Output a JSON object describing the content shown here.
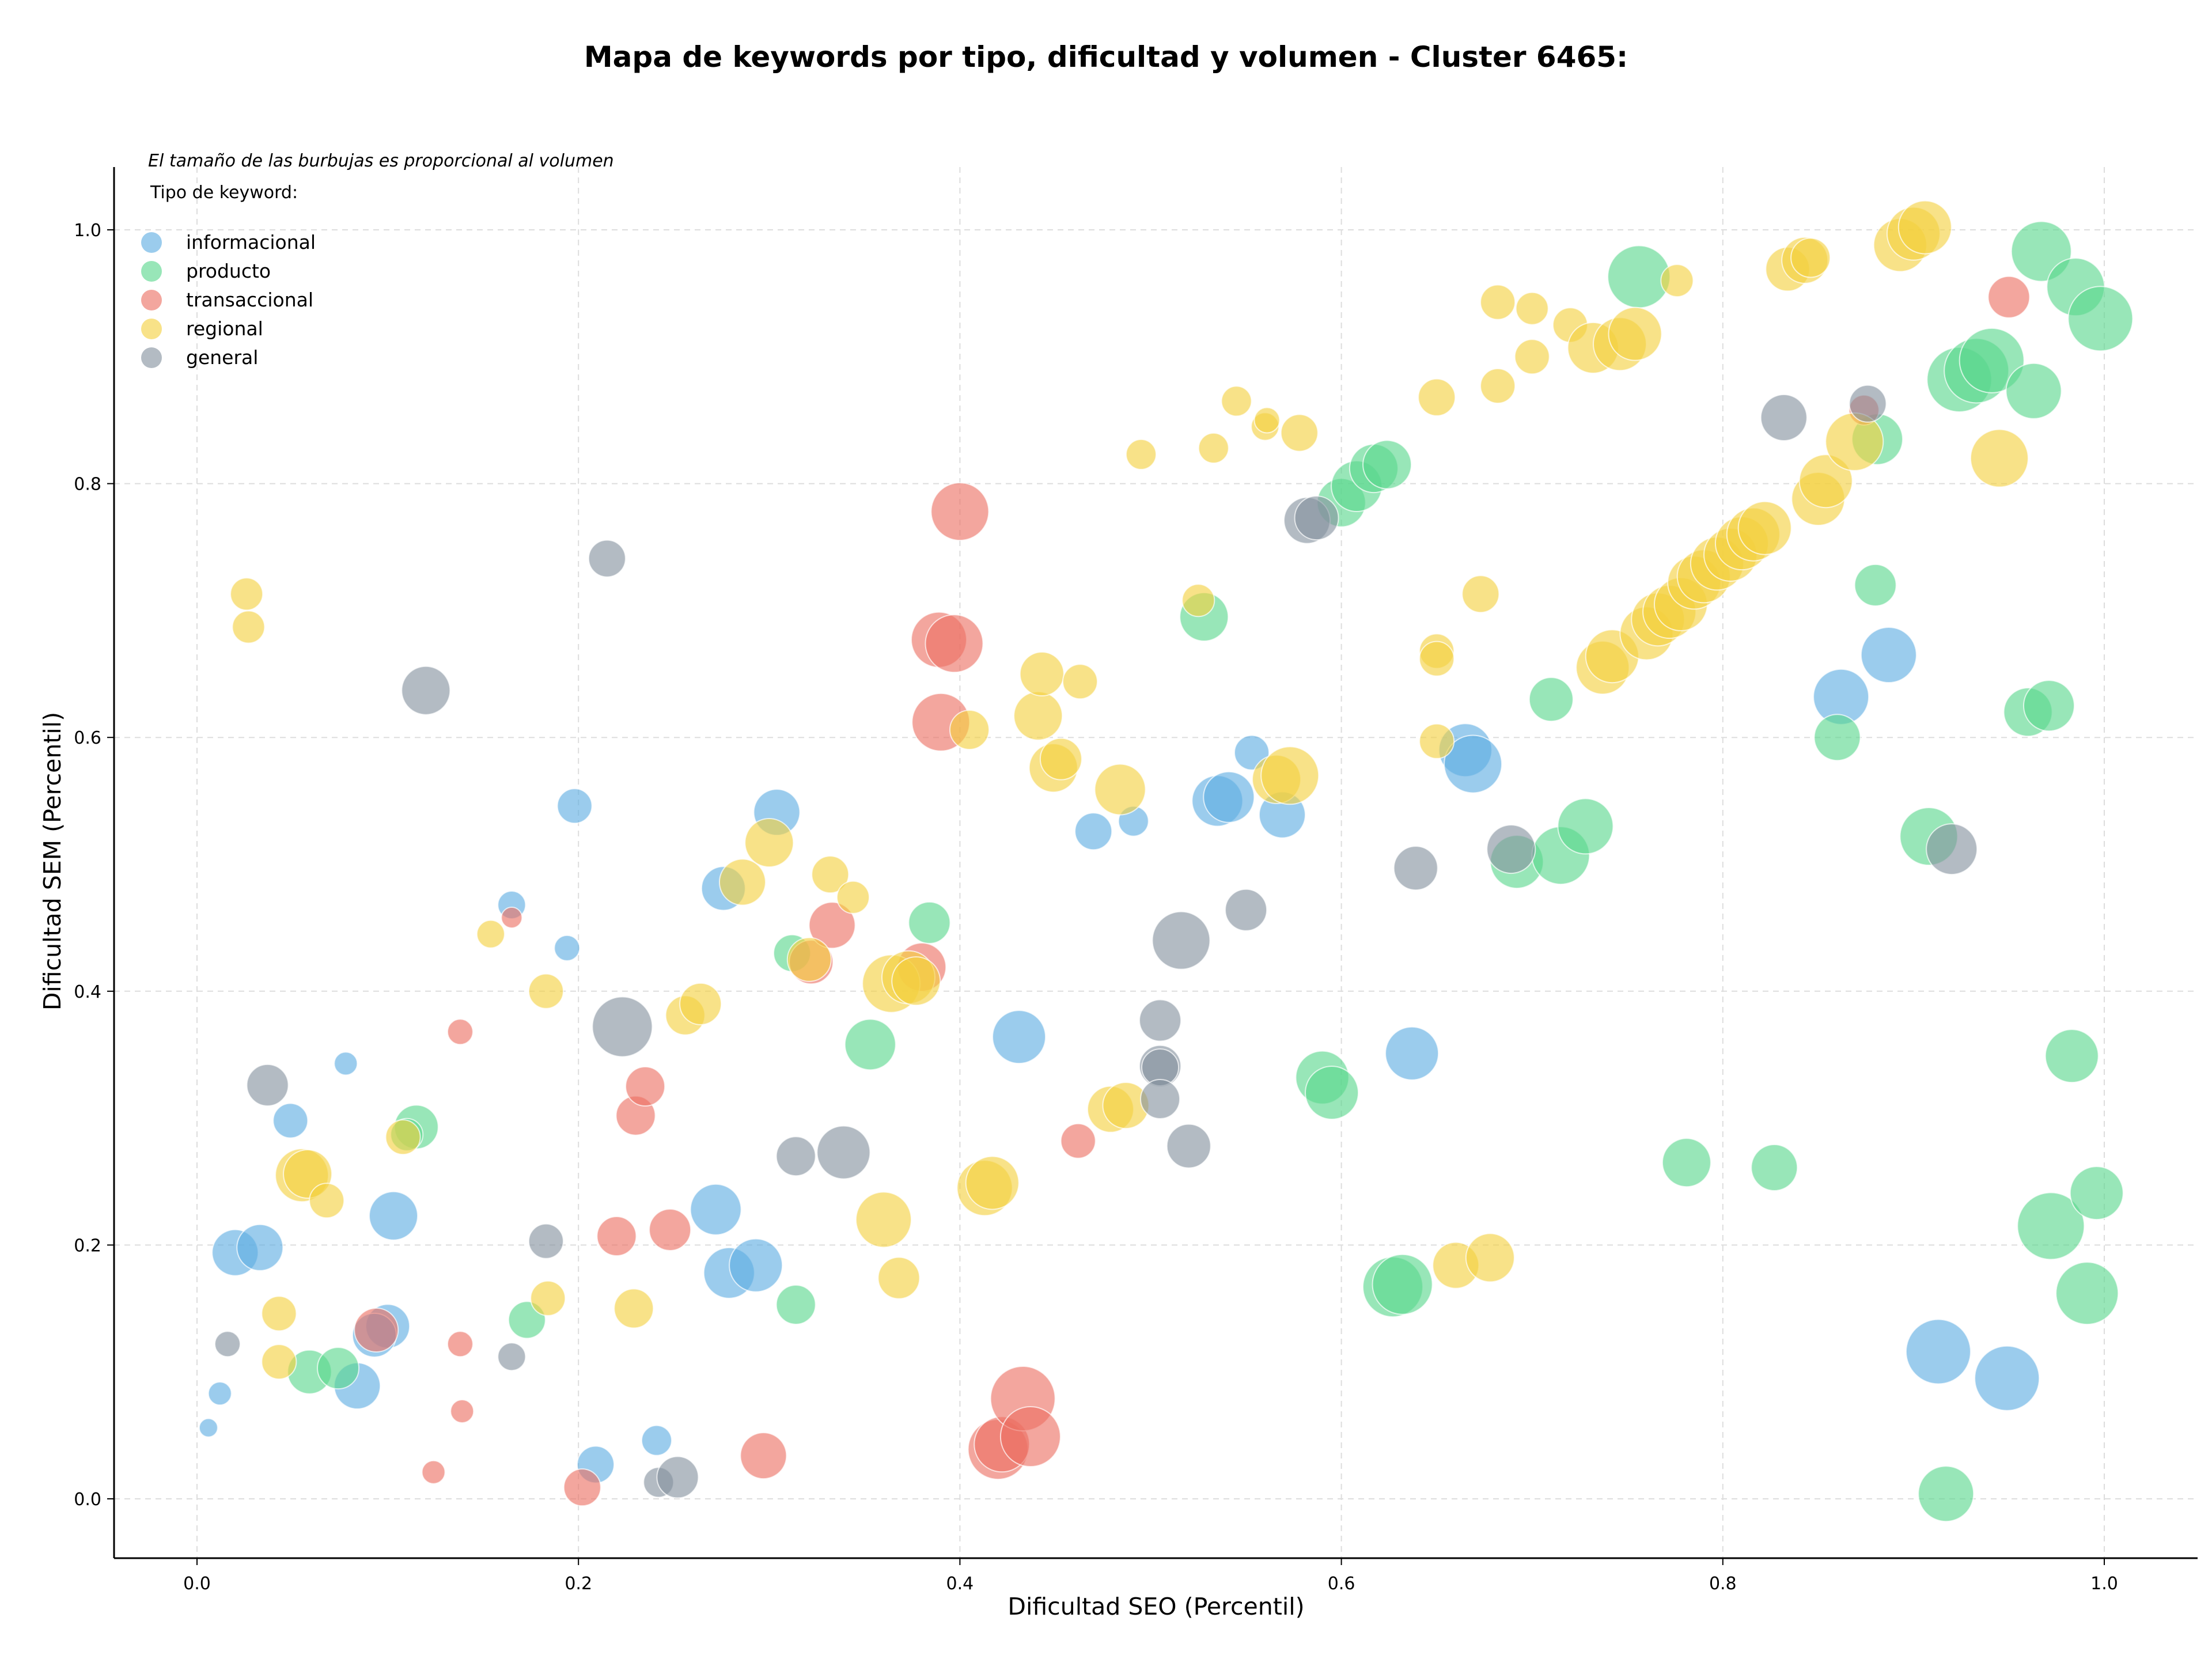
{
  "chart_data": {
    "type": "scatter",
    "title": "Mapa de keywords por tipo, dificultad y volumen - Cluster 6465:",
    "xlabel": "Dificultad SEO (Percentil)",
    "ylabel": "Dificultad SEM (Percentil)",
    "xlim": [
      -0.045,
      1.048
    ],
    "ylim": [
      -0.045,
      1.05
    ],
    "xticks": [
      "0.0",
      "0.2",
      "0.4",
      "0.6",
      "0.8",
      "1.0"
    ],
    "yticks": [
      "0.0",
      "0.2",
      "0.4",
      "0.6",
      "0.8",
      "1.0"
    ],
    "grid": true,
    "legend": {
      "placement": "top-left",
      "note": "El tamaño de las burbujas es proporcional al volumen",
      "title": "Tipo de keyword:"
    },
    "series": [
      {
        "name": "informacional",
        "color": "#5DADE2",
        "points": [
          [
            0.006,
            0.056,
            0.8
          ],
          [
            0.012,
            0.083,
            1.0
          ],
          [
            0.02,
            0.194,
            2.0
          ],
          [
            0.033,
            0.198,
            2.0
          ],
          [
            0.049,
            0.298,
            1.5
          ],
          [
            0.078,
            0.343,
            1.0
          ],
          [
            0.084,
            0.089,
            2.0
          ],
          [
            0.1,
            0.136,
            1.9
          ],
          [
            0.093,
            0.129,
            1.9
          ],
          [
            0.103,
            0.223,
            2.1
          ],
          [
            0.165,
            0.468,
            1.2
          ],
          [
            0.194,
            0.434,
            1.1
          ],
          [
            0.198,
            0.546,
            1.5
          ],
          [
            0.209,
            0.027,
            1.6
          ],
          [
            0.241,
            0.046,
            1.3
          ],
          [
            0.272,
            0.228,
            2.2
          ],
          [
            0.276,
            0.481,
            1.9
          ],
          [
            0.279,
            0.178,
            2.2
          ],
          [
            0.293,
            0.184,
            2.3
          ],
          [
            0.304,
            0.541,
            2.0
          ],
          [
            0.431,
            0.364,
            2.3
          ],
          [
            0.47,
            0.526,
            1.6
          ],
          [
            0.491,
            0.534,
            1.3
          ],
          [
            0.535,
            0.55,
            2.2
          ],
          [
            0.541,
            0.553,
            2.2
          ],
          [
            0.553,
            0.588,
            1.5
          ],
          [
            0.569,
            0.539,
            2.0
          ],
          [
            0.637,
            0.351,
            2.3
          ],
          [
            0.665,
            0.59,
            2.3
          ],
          [
            0.669,
            0.579,
            2.5
          ],
          [
            0.862,
            0.632,
            2.4
          ],
          [
            0.887,
            0.665,
            2.4
          ],
          [
            0.913,
            0.116,
            2.8
          ],
          [
            0.949,
            0.095,
            2.8
          ]
        ]
      },
      {
        "name": "producto",
        "color": "#58D68D",
        "points": [
          [
            0.059,
            0.1,
            1.9
          ],
          [
            0.074,
            0.103,
            1.8
          ],
          [
            0.115,
            0.293,
            1.9
          ],
          [
            0.11,
            0.287,
            1.4
          ],
          [
            0.173,
            0.141,
            1.6
          ],
          [
            0.314,
            0.153,
            1.7
          ],
          [
            0.312,
            0.43,
            1.6
          ],
          [
            0.353,
            0.358,
            2.2
          ],
          [
            0.384,
            0.454,
            1.8
          ],
          [
            0.528,
            0.695,
            2.1
          ],
          [
            0.6,
            0.785,
            2.1
          ],
          [
            0.608,
            0.798,
            2.2
          ],
          [
            0.617,
            0.812,
            2.1
          ],
          [
            0.624,
            0.815,
            2.1
          ],
          [
            0.59,
            0.332,
            2.3
          ],
          [
            0.595,
            0.32,
            2.3
          ],
          [
            0.627,
            0.167,
            2.6
          ],
          [
            0.632,
            0.169,
            2.6
          ],
          [
            0.692,
            0.502,
            2.3
          ],
          [
            0.71,
            0.63,
            1.9
          ],
          [
            0.715,
            0.507,
            2.5
          ],
          [
            0.728,
            0.53,
            2.4
          ],
          [
            0.756,
            0.963,
            2.7
          ],
          [
            0.781,
            0.265,
            2.1
          ],
          [
            0.827,
            0.261,
            2.0
          ],
          [
            0.86,
            0.6,
            2.0
          ],
          [
            0.88,
            0.72,
            1.8
          ],
          [
            0.881,
            0.835,
            2.2
          ],
          [
            0.908,
            0.522,
            2.5
          ],
          [
            0.924,
            0.882,
            2.8
          ],
          [
            0.933,
            0.889,
            2.8
          ],
          [
            0.941,
            0.897,
            2.8
          ],
          [
            0.917,
            0.004,
            2.4
          ],
          [
            0.96,
            0.62,
            2.1
          ],
          [
            0.971,
            0.625,
            2.2
          ],
          [
            0.963,
            0.873,
            2.4
          ],
          [
            0.967,
            0.983,
            2.6
          ],
          [
            0.972,
            0.215,
            2.9
          ],
          [
            0.985,
            0.955,
            2.5
          ],
          [
            0.983,
            0.349,
            2.3
          ],
          [
            0.991,
            0.162,
            2.7
          ],
          [
            0.996,
            0.241,
            2.3
          ],
          [
            0.998,
            0.93,
            2.8
          ]
        ]
      },
      {
        "name": "transaccional",
        "color": "#EC7063",
        "points": [
          [
            0.124,
            0.021,
            1.0
          ],
          [
            0.094,
            0.133,
            1.9
          ],
          [
            0.138,
            0.122,
            1.1
          ],
          [
            0.138,
            0.368,
            1.1
          ],
          [
            0.139,
            0.069,
            1.0
          ],
          [
            0.165,
            0.458,
            0.9
          ],
          [
            0.202,
            0.009,
            1.6
          ],
          [
            0.22,
            0.207,
            1.7
          ],
          [
            0.23,
            0.302,
            1.7
          ],
          [
            0.235,
            0.325,
            1.7
          ],
          [
            0.248,
            0.212,
            1.8
          ],
          [
            0.297,
            0.034,
            2.0
          ],
          [
            0.322,
            0.423,
            1.9
          ],
          [
            0.333,
            0.452,
            2.0
          ],
          [
            0.38,
            0.419,
            2.1
          ],
          [
            0.389,
            0.677,
            2.4
          ],
          [
            0.39,
            0.612,
            2.5
          ],
          [
            0.397,
            0.674,
            2.5
          ],
          [
            0.4,
            0.778,
            2.5
          ],
          [
            0.42,
            0.039,
            2.6
          ],
          [
            0.422,
            0.043,
            2.4
          ],
          [
            0.433,
            0.079,
            2.8
          ],
          [
            0.437,
            0.049,
            2.6
          ],
          [
            0.462,
            0.282,
            1.5
          ],
          [
            0.874,
            0.858,
            1.3
          ],
          [
            0.95,
            0.947,
            1.8
          ]
        ]
      },
      {
        "name": "regional",
        "color": "#F4D03F",
        "points": [
          [
            0.026,
            0.713,
            1.4
          ],
          [
            0.027,
            0.687,
            1.4
          ],
          [
            0.043,
            0.146,
            1.5
          ],
          [
            0.043,
            0.108,
            1.5
          ],
          [
            0.055,
            0.255,
            2.3
          ],
          [
            0.058,
            0.256,
            2.1
          ],
          [
            0.068,
            0.235,
            1.5
          ],
          [
            0.108,
            0.285,
            1.5
          ],
          [
            0.154,
            0.445,
            1.2
          ],
          [
            0.183,
            0.4,
            1.5
          ],
          [
            0.184,
            0.158,
            1.5
          ],
          [
            0.229,
            0.15,
            1.7
          ],
          [
            0.256,
            0.381,
            1.7
          ],
          [
            0.264,
            0.39,
            1.8
          ],
          [
            0.286,
            0.486,
            2.0
          ],
          [
            0.3,
            0.517,
            2.1
          ],
          [
            0.321,
            0.425,
            1.9
          ],
          [
            0.332,
            0.492,
            1.6
          ],
          [
            0.344,
            0.474,
            1.4
          ],
          [
            0.36,
            0.22,
            2.4
          ],
          [
            0.364,
            0.406,
            2.5
          ],
          [
            0.368,
            0.174,
            1.8
          ],
          [
            0.373,
            0.411,
            2.3
          ],
          [
            0.377,
            0.408,
            2.1
          ],
          [
            0.405,
            0.606,
            1.7
          ],
          [
            0.413,
            0.245,
            2.4
          ],
          [
            0.417,
            0.249,
            2.3
          ],
          [
            0.441,
            0.617,
            2.1
          ],
          [
            0.443,
            0.65,
            1.9
          ],
          [
            0.449,
            0.576,
            2.1
          ],
          [
            0.453,
            0.583,
            1.8
          ],
          [
            0.463,
            0.644,
            1.5
          ],
          [
            0.479,
            0.307,
            2.0
          ],
          [
            0.484,
            0.559,
            2.2
          ],
          [
            0.487,
            0.31,
            2.0
          ],
          [
            0.495,
            0.823,
            1.3
          ],
          [
            0.525,
            0.708,
            1.4
          ],
          [
            0.533,
            0.828,
            1.3
          ],
          [
            0.545,
            0.865,
            1.3
          ],
          [
            0.56,
            0.845,
            1.2
          ],
          [
            0.561,
            0.85,
            1.1
          ],
          [
            0.566,
            0.567,
            2.1
          ],
          [
            0.573,
            0.57,
            2.5
          ],
          [
            0.578,
            0.84,
            1.6
          ],
          [
            0.65,
            0.597,
            1.5
          ],
          [
            0.65,
            0.668,
            1.5
          ],
          [
            0.65,
            0.662,
            1.5
          ],
          [
            0.65,
            0.868,
            1.6
          ],
          [
            0.66,
            0.184,
            2.0
          ],
          [
            0.673,
            0.713,
            1.6
          ],
          [
            0.678,
            0.19,
            2.1
          ],
          [
            0.682,
            0.943,
            1.5
          ],
          [
            0.682,
            0.877,
            1.5
          ],
          [
            0.7,
            0.938,
            1.4
          ],
          [
            0.7,
            0.9,
            1.5
          ],
          [
            0.72,
            0.925,
            1.5
          ],
          [
            0.732,
            0.907,
            2.2
          ],
          [
            0.737,
            0.655,
            2.3
          ],
          [
            0.742,
            0.664,
            2.3
          ],
          [
            0.746,
            0.91,
            2.3
          ],
          [
            0.754,
            0.918,
            2.3
          ],
          [
            0.76,
            0.682,
            2.3
          ],
          [
            0.766,
            0.693,
            2.3
          ],
          [
            0.772,
            0.699,
            2.3
          ],
          [
            0.776,
            0.96,
            1.4
          ],
          [
            0.778,
            0.705,
            2.3
          ],
          [
            0.785,
            0.722,
            2.3
          ],
          [
            0.79,
            0.727,
            2.3
          ],
          [
            0.797,
            0.737,
            2.3
          ],
          [
            0.804,
            0.744,
            2.3
          ],
          [
            0.81,
            0.753,
            2.3
          ],
          [
            0.816,
            0.76,
            2.3
          ],
          [
            0.822,
            0.765,
            2.3
          ],
          [
            0.834,
            0.969,
            1.9
          ],
          [
            0.843,
            0.976,
            2.0
          ],
          [
            0.846,
            0.978,
            1.7
          ],
          [
            0.85,
            0.788,
            2.3
          ],
          [
            0.854,
            0.802,
            2.3
          ],
          [
            0.869,
            0.833,
            2.5
          ],
          [
            0.893,
            0.988,
            2.3
          ],
          [
            0.9,
            0.997,
            2.3
          ],
          [
            0.906,
            1.002,
            2.3
          ],
          [
            0.945,
            0.82,
            2.5
          ]
        ]
      },
      {
        "name": "general",
        "color": "#85929E",
        "points": [
          [
            0.016,
            0.122,
            1.1
          ],
          [
            0.037,
            0.326,
            1.8
          ],
          [
            0.12,
            0.637,
            2.1
          ],
          [
            0.165,
            0.112,
            1.2
          ],
          [
            0.183,
            0.203,
            1.5
          ],
          [
            0.215,
            0.741,
            1.6
          ],
          [
            0.223,
            0.372,
            2.6
          ],
          [
            0.242,
            0.013,
            1.3
          ],
          [
            0.252,
            0.017,
            1.8
          ],
          [
            0.314,
            0.27,
            1.7
          ],
          [
            0.339,
            0.273,
            2.3
          ],
          [
            0.505,
            0.377,
            1.8
          ],
          [
            0.505,
            0.341,
            1.8
          ],
          [
            0.505,
            0.34,
            1.6
          ],
          [
            0.505,
            0.315,
            1.7
          ],
          [
            0.516,
            0.44,
            2.5
          ],
          [
            0.52,
            0.278,
            1.9
          ],
          [
            0.55,
            0.464,
            1.8
          ],
          [
            0.582,
            0.771,
            2.0
          ],
          [
            0.587,
            0.773,
            1.9
          ],
          [
            0.639,
            0.497,
            1.9
          ],
          [
            0.689,
            0.512,
            2.1
          ],
          [
            0.832,
            0.852,
            2.0
          ],
          [
            0.876,
            0.863,
            1.6
          ],
          [
            0.92,
            0.512,
            2.2
          ]
        ]
      }
    ]
  }
}
